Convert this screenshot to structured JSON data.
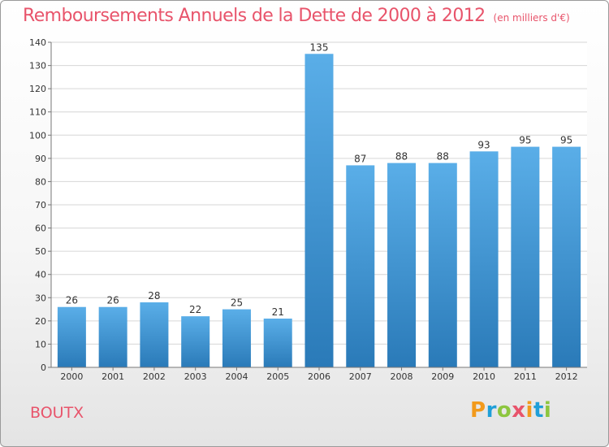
{
  "header": {
    "title": "Remboursements Annuels de la Dette de 2000 à 2012",
    "unit": "(en milliers d'€)"
  },
  "footer": {
    "location": "BOUTX",
    "logo": {
      "letters": [
        "P",
        "r",
        "o",
        "x",
        "i",
        "t",
        "i"
      ],
      "colors": [
        "#f29a1c",
        "#1f9fd8",
        "#8dc63f",
        "#e8546b",
        "#f29a1c",
        "#1f9fd8",
        "#8dc63f"
      ]
    }
  },
  "chart_data": {
    "type": "bar",
    "title": "Remboursements Annuels de la Dette de 2000 à 2012",
    "subtitle": "(en milliers d'€)",
    "categories": [
      "2000",
      "2001",
      "2002",
      "2003",
      "2004",
      "2005",
      "2006",
      "2007",
      "2008",
      "2009",
      "2010",
      "2011",
      "2012"
    ],
    "values": [
      26,
      26,
      28,
      22,
      25,
      21,
      135,
      87,
      88,
      88,
      93,
      95,
      95
    ],
    "ylim": [
      0,
      140
    ],
    "yticks": [
      0,
      10,
      20,
      30,
      40,
      50,
      60,
      70,
      80,
      90,
      100,
      110,
      120,
      130,
      140
    ],
    "grid": true,
    "bar_color_top": "#5aaee8",
    "bar_color_bottom": "#2a7ab8",
    "text_color": "#333333"
  }
}
